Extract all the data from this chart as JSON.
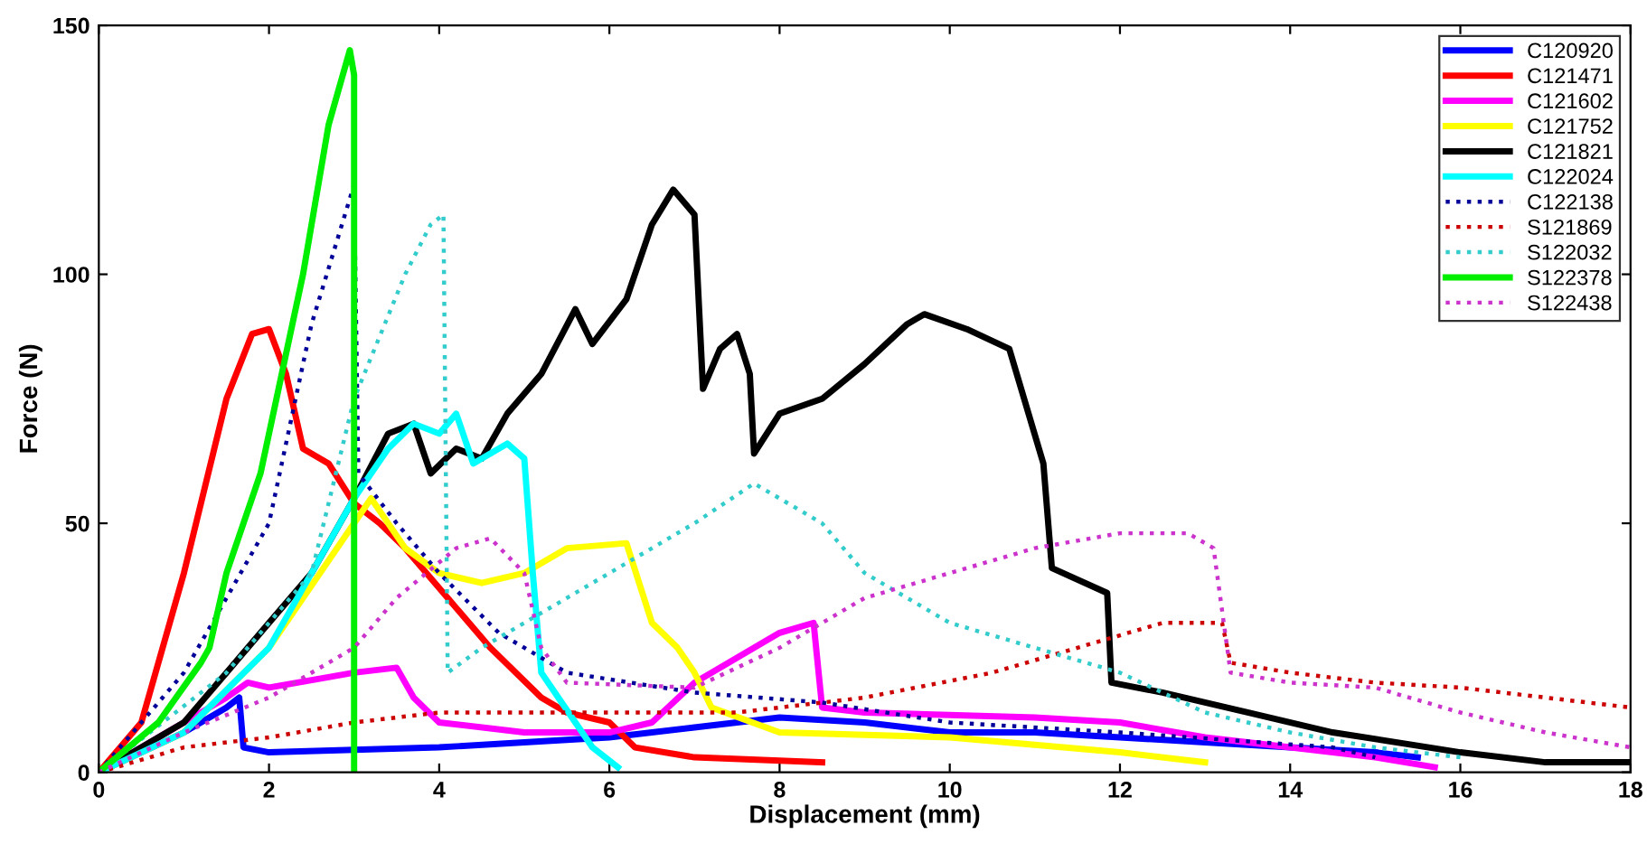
{
  "chart_data": {
    "type": "line",
    "xlabel": "Displacement (mm)",
    "ylabel": "Force (N)",
    "xlim": [
      0,
      18
    ],
    "ylim": [
      0,
      150
    ],
    "xticks": [
      0,
      2,
      4,
      6,
      8,
      10,
      12,
      14,
      16,
      18
    ],
    "yticks": [
      0,
      50,
      100,
      150
    ],
    "grid": false,
    "legend": "top right",
    "marker": "none",
    "series": [
      {
        "name": "C120920",
        "color": "#0000ff",
        "line_style": "solid",
        "x": [
          0,
          0.5,
          1,
          1.5,
          1.65,
          1.7,
          2,
          3,
          4,
          5,
          6,
          7,
          7.5,
          8,
          9,
          10,
          11,
          12,
          13,
          14,
          15,
          15.5
        ],
        "values": [
          0,
          4,
          8,
          13,
          15,
          5,
          4,
          4.5,
          5,
          6,
          7,
          9,
          10,
          11,
          10,
          8,
          8,
          7,
          6,
          5,
          4,
          3
        ]
      },
      {
        "name": "C121471",
        "color": "#ff0000",
        "line_style": "solid",
        "x": [
          0,
          0.5,
          1,
          1.5,
          1.8,
          2,
          2.2,
          2.4,
          2.7,
          3,
          3.3,
          3.6,
          4.1,
          4.6,
          5.2,
          5.5,
          6,
          6.3,
          7,
          8.5
        ],
        "values": [
          0,
          10,
          40,
          75,
          88,
          89,
          80,
          65,
          62,
          54,
          50,
          45,
          35,
          25,
          15,
          12,
          10,
          5,
          3,
          2
        ]
      },
      {
        "name": "C121602",
        "color": "#ff00ff",
        "line_style": "solid",
        "x": [
          0,
          1,
          1.5,
          1.75,
          2,
          3,
          3.5,
          3.7,
          4,
          5,
          6,
          6.5,
          7,
          8,
          8.4,
          8.5,
          9,
          11,
          12,
          13,
          14,
          15,
          15.7
        ],
        "values": [
          0,
          10,
          15,
          18,
          17,
          20,
          21,
          15,
          10,
          8,
          8,
          10,
          18,
          28,
          30,
          13,
          12,
          11,
          10,
          7,
          5,
          3,
          1
        ]
      },
      {
        "name": "C121752",
        "color": "#ffff00",
        "line_style": "solid",
        "x": [
          0,
          1,
          2,
          3,
          3.2,
          3.6,
          4,
          4.5,
          5,
          5.5,
          6.2,
          6.5,
          6.8,
          7,
          7.2,
          8,
          10,
          12,
          13
        ],
        "values": [
          0,
          8,
          25,
          50,
          55,
          45,
          40,
          38,
          40,
          45,
          46,
          30,
          25,
          20,
          13,
          8,
          7,
          4,
          2
        ]
      },
      {
        "name": "C121821",
        "color": "#000000",
        "line_style": "solid",
        "x": [
          0,
          1,
          1.5,
          2,
          2.5,
          3,
          3.4,
          3.7,
          3.9,
          4.2,
          4.5,
          4.8,
          5.2,
          5.6,
          5.8,
          6.2,
          6.5,
          6.75,
          7,
          7.1,
          7.3,
          7.5,
          7.65,
          7.7,
          8,
          8.5,
          9,
          9.5,
          9.7,
          10.2,
          10.7,
          11.1,
          11.2,
          11.85,
          11.9,
          12.5,
          13.5,
          14.5,
          16,
          17,
          18
        ],
        "values": [
          0,
          10,
          20,
          30,
          40,
          55,
          68,
          70,
          60,
          65,
          63,
          72,
          80,
          93,
          86,
          95,
          110,
          117,
          112,
          77,
          85,
          88,
          80,
          64,
          72,
          75,
          82,
          90,
          92,
          89,
          85,
          62,
          41,
          36,
          18,
          16,
          12,
          8,
          4,
          2,
          2
        ]
      },
      {
        "name": "C122024",
        "color": "#00ffff",
        "line_style": "solid",
        "x": [
          0,
          1,
          2,
          3,
          3.4,
          3.7,
          4,
          4.2,
          4.4,
          4.8,
          5,
          5.1,
          5.2,
          5.4,
          5.8,
          6.1
        ],
        "values": [
          0,
          8,
          25,
          55,
          65,
          70,
          68,
          72,
          62,
          66,
          63,
          40,
          20,
          15,
          5,
          1
        ]
      },
      {
        "name": "C122138",
        "color": "#000099",
        "line_style": "dotted",
        "x": [
          0,
          1,
          2,
          2.5,
          3,
          3.05,
          3.5,
          4,
          4.7,
          5.5,
          7,
          8.5,
          10,
          12,
          14.5,
          15
        ],
        "values": [
          0,
          20,
          50,
          90,
          118,
          60,
          50,
          40,
          28,
          20,
          16,
          14,
          10,
          8,
          5,
          3
        ]
      },
      {
        "name": "S121869",
        "color": "#cc0000",
        "line_style": "dotted",
        "x": [
          0,
          1,
          2,
          3,
          4,
          6,
          7.5,
          9,
          10.5,
          11.5,
          12.5,
          13.2,
          13.3,
          14,
          15,
          16,
          17,
          18
        ],
        "values": [
          0,
          5,
          7,
          10,
          12,
          12,
          12,
          15,
          20,
          25,
          30,
          30,
          22,
          20,
          18,
          17,
          15,
          13
        ]
      },
      {
        "name": "S122032",
        "color": "#33cccc",
        "line_style": "dotted",
        "x": [
          0,
          1.5,
          2.5,
          3,
          3.6,
          3.9,
          4.05,
          4.1,
          4.5,
          5,
          6,
          7,
          7.7,
          8,
          8.5,
          9,
          10,
          11,
          12,
          13,
          14,
          15,
          16
        ],
        "values": [
          0,
          20,
          40,
          75,
          100,
          110,
          112,
          20,
          25,
          30,
          40,
          50,
          58,
          55,
          50,
          40,
          30,
          25,
          20,
          12,
          8,
          5,
          3
        ]
      },
      {
        "name": "S122378",
        "color": "#00ee00",
        "line_style": "solid",
        "x": [
          0,
          0.7,
          1.2,
          1.3,
          1.5,
          1.9,
          2.4,
          2.7,
          2.95,
          3,
          3
        ],
        "values": [
          0,
          10,
          22,
          25,
          40,
          60,
          100,
          130,
          145,
          140,
          0
        ]
      },
      {
        "name": "S122438",
        "color": "#cc33cc",
        "line_style": "dotted",
        "x": [
          0,
          1,
          2,
          3,
          3.5,
          4.2,
          4.6,
          5,
          5.2,
          5.5,
          7,
          8,
          9,
          10,
          11,
          12,
          12.8,
          13.1,
          13.3,
          14,
          15,
          16,
          17,
          18
        ],
        "values": [
          0,
          8,
          15,
          25,
          35,
          45,
          47,
          40,
          25,
          18,
          17,
          25,
          35,
          40,
          45,
          48,
          48,
          45,
          20,
          18,
          17,
          12,
          8,
          5
        ]
      }
    ]
  }
}
